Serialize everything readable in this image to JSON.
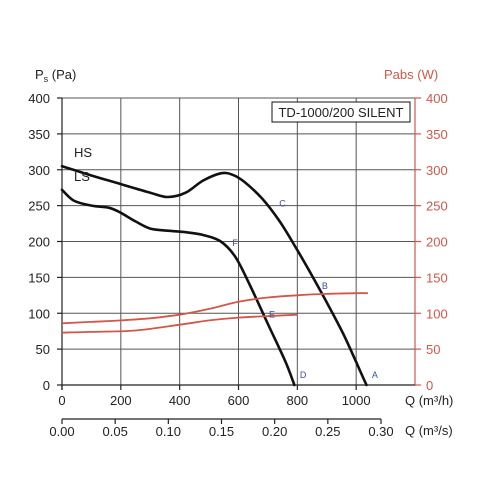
{
  "chart_data": {
    "type": "line",
    "title": "TD-1000/200 SILENT",
    "ylabel_left": {
      "base": "P",
      "sub": "s",
      "unit": " (Pa)"
    },
    "ylabel_right": "Pabs (W)",
    "xlabel": "Q (m³/h)",
    "x2label": "Q (m³/s)",
    "xlim": [
      0,
      1200
    ],
    "ylim": [
      0,
      400
    ],
    "y2lim": [
      0,
      400
    ],
    "grid": true,
    "x_ticks": [
      "0",
      "200",
      "400",
      "600",
      "800",
      "1000"
    ],
    "x_tick_values": [
      0,
      200,
      400,
      600,
      800,
      1000
    ],
    "x2_ticks": [
      "0.00",
      "0.05",
      "0.10",
      "0.15",
      "0.20",
      "0.25",
      "0.30"
    ],
    "y_ticks": [
      "0",
      "50",
      "100",
      "150",
      "200",
      "250",
      "300",
      "350",
      "400"
    ],
    "y_tick_values": [
      0,
      50,
      100,
      150,
      200,
      250,
      300,
      350,
      400
    ],
    "y2_ticks": [
      "0",
      "50",
      "100",
      "150",
      "200",
      "250",
      "300",
      "350",
      "400"
    ],
    "colors": {
      "pressure": "#111111",
      "power": "#d0574a",
      "points": "#3a4f9e",
      "right_axis": "#d0574a"
    },
    "series": [
      {
        "name": "HS",
        "kind": "pressure",
        "x": [
          0,
          100,
          200,
          300,
          360,
          420,
          480,
          540,
          580,
          620,
          680,
          740,
          800,
          860,
          920,
          960,
          1000,
          1035
        ],
        "y": [
          305,
          292,
          280,
          268,
          262,
          268,
          285,
          295,
          293,
          283,
          260,
          228,
          188,
          145,
          100,
          68,
          32,
          0
        ]
      },
      {
        "name": "LS",
        "kind": "pressure",
        "x": [
          0,
          40,
          100,
          160,
          200,
          250,
          300,
          360,
          420,
          480,
          540,
          590,
          640,
          700,
          760,
          790
        ],
        "y": [
          272,
          257,
          250,
          247,
          240,
          228,
          218,
          215,
          213,
          209,
          200,
          178,
          138,
          85,
          32,
          0
        ]
      },
      {
        "name": "",
        "kind": "power",
        "x": [
          0,
          100,
          200,
          300,
          400,
          500,
          600,
          700,
          800,
          900,
          1000,
          1040
        ],
        "y": [
          86,
          88,
          90,
          93,
          98,
          106,
          116,
          122,
          125,
          127,
          128,
          128
        ]
      },
      {
        "name": "",
        "kind": "power",
        "x": [
          0,
          100,
          250,
          400,
          500,
          600,
          700,
          800
        ],
        "y": [
          73,
          74,
          76,
          84,
          90,
          94,
          96,
          98
        ]
      }
    ],
    "points": [
      {
        "label": "A",
        "x": 1040,
        "y": 0
      },
      {
        "label": "B",
        "x": 870,
        "y": 138
      },
      {
        "label": "C",
        "x": 725,
        "y": 253
      },
      {
        "label": "D",
        "x": 795,
        "y": 0
      },
      {
        "label": "E",
        "x": 690,
        "y": 98
      },
      {
        "label": "F",
        "x": 565,
        "y": 198
      }
    ]
  }
}
